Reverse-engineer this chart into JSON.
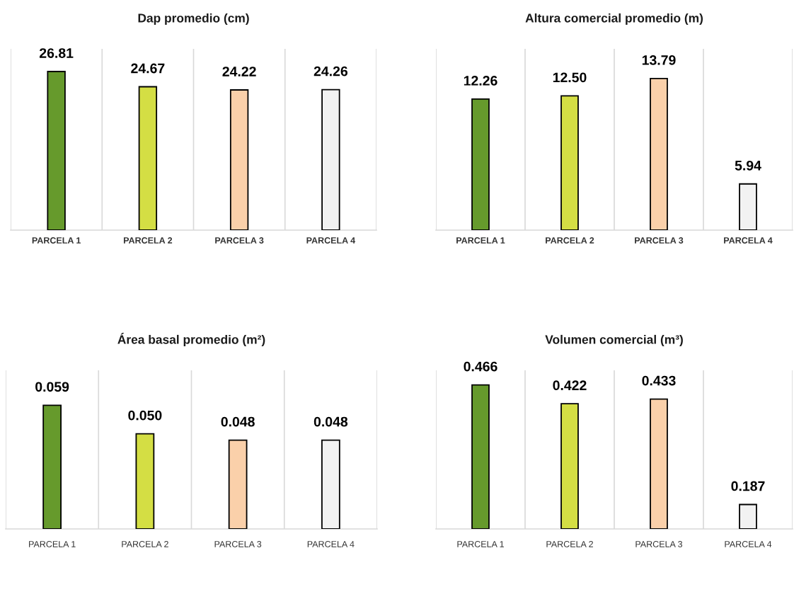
{
  "chart_data": [
    {
      "type": "bar",
      "title": "Dap promedio (cm)",
      "categories": [
        "PARCELA 1",
        "PARCELA 2",
        "PARCELA 3",
        "PARCELA 4"
      ],
      "values": [
        26.81,
        24.67,
        24.22,
        24.26
      ],
      "value_labels": [
        "26.81",
        "24.67",
        "24.22",
        "24.26"
      ],
      "colors": [
        "#669a2c",
        "#d4de44",
        "#fad0aa",
        "#f2f2f2"
      ],
      "ylim": [
        4.5,
        30
      ],
      "grid": "x",
      "tick_labels": "x"
    },
    {
      "type": "bar",
      "title": "Altura comercial promedio (m)",
      "categories": [
        "PARCELA 1",
        "PARCELA 2",
        "PARCELA 3",
        "PARCELA 4"
      ],
      "values": [
        12.26,
        12.5,
        13.79,
        5.94
      ],
      "value_labels": [
        "12.26",
        "12.50",
        "13.79",
        "5.94"
      ],
      "colors": [
        "#669a2c",
        "#d4de44",
        "#fad0aa",
        "#f2f2f2"
      ],
      "ylim": [
        2.5,
        16
      ],
      "grid": "x",
      "tick_labels": "x"
    },
    {
      "type": "bar",
      "title": "Área basal promedio (m²)",
      "categories": [
        "PARCELA 1",
        "PARCELA 2",
        "PARCELA 3",
        "PARCELA 4"
      ],
      "values": [
        0.059,
        0.05,
        0.048,
        0.048
      ],
      "value_labels": [
        "0.059",
        "0.050",
        "0.048",
        "0.048"
      ],
      "colors": [
        "#669a2c",
        "#d4de44",
        "#fad0aa",
        "#f2f2f2"
      ],
      "ylim": [
        0.02,
        0.07
      ],
      "grid": "x",
      "tick_labels": "x"
    },
    {
      "type": "bar",
      "title": "Volumen comercial (m³)",
      "categories": [
        "PARCELA 1",
        "PARCELA 2",
        "PARCELA 3",
        "PARCELA 4"
      ],
      "values": [
        0.466,
        0.422,
        0.433,
        0.187
      ],
      "value_labels": [
        "0.466",
        "0.422",
        "0.433",
        "0.187"
      ],
      "colors": [
        "#669a2c",
        "#d4de44",
        "#fad0aa",
        "#f2f2f2"
      ],
      "ylim": [
        0.13,
        0.5
      ],
      "grid": "x",
      "tick_labels": "x"
    }
  ]
}
